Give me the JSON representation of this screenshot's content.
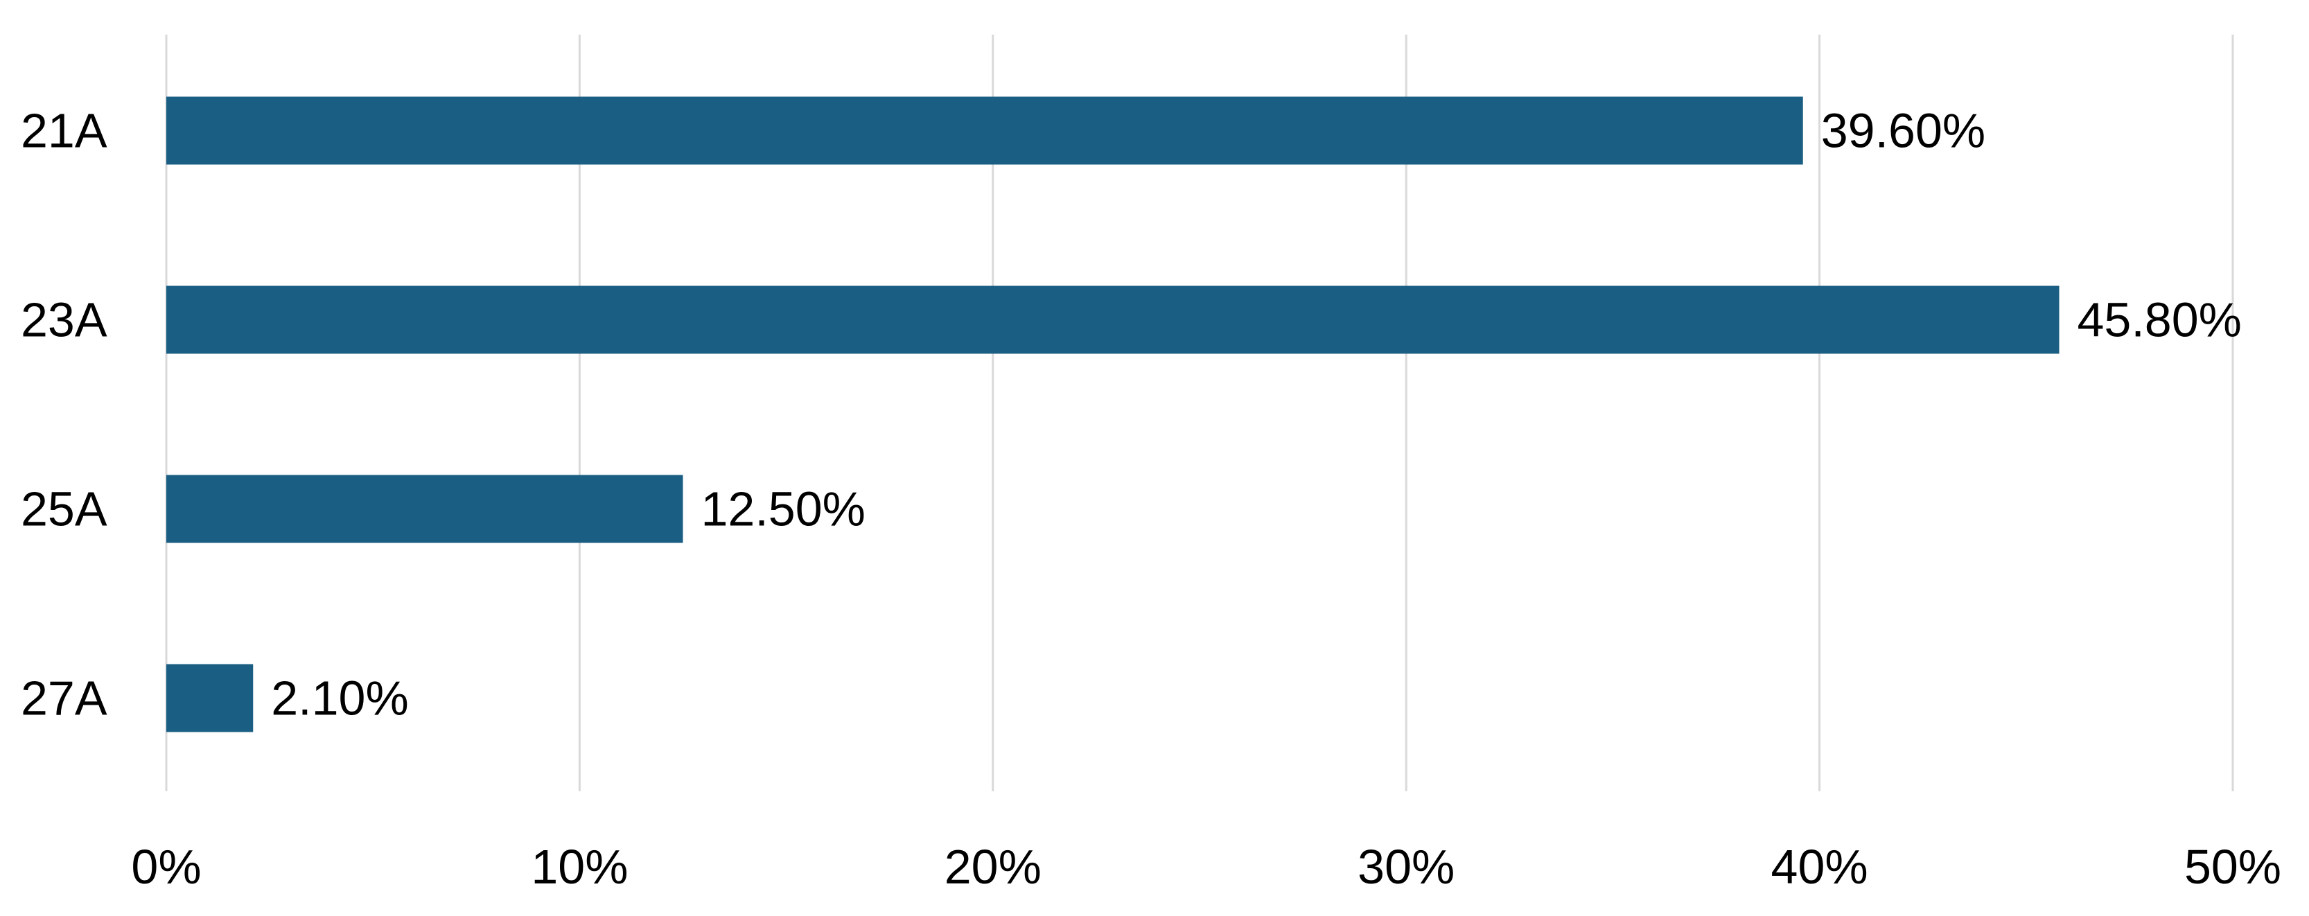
{
  "chart_data": {
    "type": "bar",
    "orientation": "horizontal",
    "categories": [
      "21A",
      "23A",
      "25A",
      "27A"
    ],
    "values": [
      39.6,
      45.8,
      12.5,
      2.1
    ],
    "data_labels": [
      "39.60%",
      "45.80%",
      "12.50%",
      "2.10%"
    ],
    "x_ticks": [
      0,
      10,
      20,
      30,
      40,
      50
    ],
    "x_tick_labels": [
      "0%",
      "10%",
      "20%",
      "30%",
      "40%",
      "50%"
    ],
    "xlim": [
      0,
      50
    ],
    "title": "",
    "xlabel": "",
    "ylabel": "",
    "grid": "vertical",
    "legend": "none",
    "bar_color": "#1a5f83"
  }
}
